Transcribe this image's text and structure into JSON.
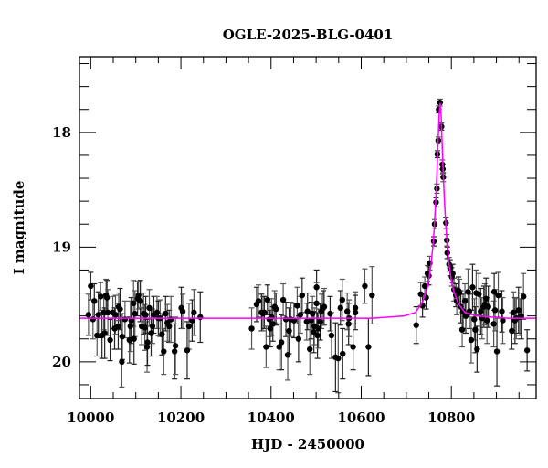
{
  "chart_data": {
    "type": "scatter",
    "title": "OGLE-2025-BLG-0401",
    "xlabel": "HJD - 2450000",
    "ylabel": "I magnitude",
    "xlim": [
      9975,
      10988
    ],
    "ylim": [
      20.32,
      17.34
    ],
    "y_inverted": true,
    "grid": false,
    "x_ticks": [
      10000,
      10200,
      10400,
      10600,
      10800
    ],
    "x_tick_labels": [
      "10000",
      "10200",
      "10400",
      "10600",
      "10800"
    ],
    "x_minor_step": 50,
    "y_ticks": [
      18,
      19,
      20
    ],
    "y_tick_labels": [
      "18",
      "19",
      "20"
    ],
    "y_minor_step": 0.2,
    "colors": {
      "points": "#000000",
      "error_bars": "#555555",
      "model": "#ff00ff",
      "axes": "#000000"
    },
    "points_columns": [
      "hjd",
      "mag",
      "err"
    ],
    "points": [
      [
        9995,
        19.59,
        0.18
      ],
      [
        10000,
        19.34,
        0.12
      ],
      [
        10005,
        19.63,
        0.17
      ],
      [
        10008,
        19.47,
        0.15
      ],
      [
        10014,
        19.77,
        0.18
      ],
      [
        10017,
        19.59,
        0.2
      ],
      [
        10022,
        19.43,
        0.12
      ],
      [
        10025,
        19.77,
        0.2
      ],
      [
        10029,
        19.57,
        0.15
      ],
      [
        10031,
        19.75,
        0.22
      ],
      [
        10034,
        19.42,
        0.14
      ],
      [
        10036,
        19.44,
        0.15
      ],
      [
        10038,
        19.57,
        0.2
      ],
      [
        10043,
        19.81,
        0.18
      ],
      [
        10049,
        19.57,
        0.14
      ],
      [
        10053,
        19.71,
        0.18
      ],
      [
        10055,
        19.59,
        0.17
      ],
      [
        10061,
        19.69,
        0.2
      ],
      [
        10062,
        19.52,
        0.12
      ],
      [
        10065,
        19.54,
        0.18
      ],
      [
        10069,
        20.0,
        0.22
      ],
      [
        10070,
        19.78,
        0.2
      ],
      [
        10076,
        19.63,
        0.16
      ],
      [
        10086,
        19.81,
        0.2
      ],
      [
        10088,
        19.69,
        0.22
      ],
      [
        10090,
        19.64,
        0.2
      ],
      [
        10095,
        19.49,
        0.2
      ],
      [
        10096,
        19.8,
        0.22
      ],
      [
        10098,
        19.58,
        0.2
      ],
      [
        10104,
        19.45,
        0.15
      ],
      [
        10106,
        19.42,
        0.12
      ],
      [
        10110,
        19.47,
        0.18
      ],
      [
        10113,
        19.69,
        0.16
      ],
      [
        10117,
        19.58,
        0.18
      ],
      [
        10120,
        19.7,
        0.2
      ],
      [
        10122,
        19.59,
        0.16
      ],
      [
        10125,
        19.87,
        0.22
      ],
      [
        10126,
        19.83,
        0.2
      ],
      [
        10130,
        19.53,
        0.16
      ],
      [
        10134,
        19.75,
        0.2
      ],
      [
        10137,
        19.69,
        0.15
      ],
      [
        10140,
        19.59,
        0.16
      ],
      [
        10147,
        19.57,
        0.14
      ],
      [
        10150,
        19.62,
        0.15
      ],
      [
        10154,
        19.62,
        0.16
      ],
      [
        10158,
        19.76,
        0.18
      ],
      [
        10162,
        19.91,
        0.2
      ],
      [
        10166,
        19.58,
        0.15
      ],
      [
        10170,
        19.66,
        0.16
      ],
      [
        10174,
        19.69,
        0.14
      ],
      [
        10178,
        19.63,
        0.2
      ],
      [
        10186,
        19.91,
        0.24
      ],
      [
        10188,
        19.86,
        0.25
      ],
      [
        10201,
        19.53,
        0.18
      ],
      [
        10204,
        19.56,
        0.15
      ],
      [
        10214,
        19.9,
        0.25
      ],
      [
        10218,
        19.69,
        0.2
      ],
      [
        10225,
        19.64,
        0.18
      ],
      [
        10229,
        19.57,
        0.2
      ],
      [
        10243,
        19.61,
        0.22
      ],
      [
        10357,
        19.71,
        0.18
      ],
      [
        10368,
        19.5,
        0.15
      ],
      [
        10372,
        19.47,
        0.14
      ],
      [
        10379,
        19.57,
        0.16
      ],
      [
        10382,
        19.58,
        0.15
      ],
      [
        10385,
        19.57,
        0.14
      ],
      [
        10389,
        19.87,
        0.18
      ],
      [
        10392,
        19.46,
        0.13
      ],
      [
        10396,
        19.63,
        0.15
      ],
      [
        10398,
        19.71,
        0.16
      ],
      [
        10401,
        19.61,
        0.16
      ],
      [
        10404,
        19.67,
        0.15
      ],
      [
        10408,
        19.52,
        0.14
      ],
      [
        10411,
        19.54,
        0.14
      ],
      [
        10418,
        19.87,
        0.2
      ],
      [
        10423,
        19.83,
        0.24
      ],
      [
        10427,
        19.46,
        0.14
      ],
      [
        10433,
        19.63,
        0.15
      ],
      [
        10437,
        19.94,
        0.22
      ],
      [
        10440,
        19.73,
        0.2
      ],
      [
        10444,
        19.63,
        0.15
      ],
      [
        10451,
        19.64,
        0.15
      ],
      [
        10458,
        19.51,
        0.16
      ],
      [
        10461,
        19.8,
        0.2
      ],
      [
        10465,
        19.59,
        0.16
      ],
      [
        10469,
        19.42,
        0.15
      ],
      [
        10479,
        19.65,
        0.16
      ],
      [
        10481,
        19.56,
        0.16
      ],
      [
        10486,
        19.89,
        0.22
      ],
      [
        10489,
        19.64,
        0.16
      ],
      [
        10492,
        19.58,
        0.15
      ],
      [
        10495,
        19.74,
        0.18
      ],
      [
        10496,
        19.69,
        0.16
      ],
      [
        10501,
        19.35,
        0.15
      ],
      [
        10501,
        19.49,
        0.18
      ],
      [
        10503,
        19.77,
        0.2
      ],
      [
        10505,
        19.71,
        0.17
      ],
      [
        10509,
        19.65,
        0.16
      ],
      [
        10512,
        19.56,
        0.15
      ],
      [
        10516,
        19.53,
        0.15
      ],
      [
        10518,
        19.52,
        0.16
      ],
      [
        10531,
        19.58,
        0.15
      ],
      [
        10534,
        19.77,
        0.2
      ],
      [
        10543,
        19.96,
        0.3
      ],
      [
        10549,
        19.97,
        0.3
      ],
      [
        10554,
        19.53,
        0.15
      ],
      [
        10558,
        19.46,
        0.18
      ],
      [
        10559,
        19.93,
        0.22
      ],
      [
        10569,
        19.56,
        0.16
      ],
      [
        10572,
        19.67,
        0.18
      ],
      [
        10573,
        19.62,
        0.16
      ],
      [
        10582,
        19.87,
        0.2
      ],
      [
        10587,
        19.53,
        0.14
      ],
      [
        10587,
        19.57,
        0.15
      ],
      [
        10608,
        19.34,
        0.15
      ],
      [
        10616,
        19.87,
        0.25
      ],
      [
        10624,
        19.42,
        0.25
      ],
      [
        10722,
        19.68,
        0.16
      ],
      [
        10732,
        19.41,
        0.1
      ],
      [
        10736,
        19.51,
        0.1
      ],
      [
        10741,
        19.34,
        0.08
      ],
      [
        10744,
        19.44,
        0.1
      ],
      [
        10747,
        19.23,
        0.07
      ],
      [
        10750,
        19.25,
        0.08
      ],
      [
        10752,
        19.14,
        0.06
      ],
      [
        10761,
        18.95,
        0.04
      ],
      [
        10763,
        18.8,
        0.04
      ],
      [
        10766,
        18.61,
        0.04
      ],
      [
        10768,
        18.49,
        0.04
      ],
      [
        10769,
        18.19,
        0.03
      ],
      [
        10771,
        18.07,
        0.03
      ],
      [
        10772,
        17.8,
        0.03
      ],
      [
        10775,
        17.74,
        0.03
      ],
      [
        10778,
        17.95,
        0.03
      ],
      [
        10780,
        18.28,
        0.04
      ],
      [
        10781,
        18.32,
        0.04
      ],
      [
        10782,
        18.39,
        0.04
      ],
      [
        10788,
        18.79,
        0.05
      ],
      [
        10790,
        18.94,
        0.05
      ],
      [
        10791,
        19.05,
        0.05
      ],
      [
        10795,
        19.15,
        0.06
      ],
      [
        10797,
        19.18,
        0.07
      ],
      [
        10801,
        19.26,
        0.08
      ],
      [
        10803,
        19.23,
        0.08
      ],
      [
        10806,
        19.37,
        0.1
      ],
      [
        10810,
        19.42,
        0.1
      ],
      [
        10812,
        19.47,
        0.12
      ],
      [
        10816,
        19.38,
        0.12
      ],
      [
        10818,
        19.4,
        0.12
      ],
      [
        10821,
        19.52,
        0.14
      ],
      [
        10824,
        19.72,
        0.15
      ],
      [
        10826,
        19.56,
        0.15
      ],
      [
        10830,
        19.47,
        0.15
      ],
      [
        10832,
        19.6,
        0.15
      ],
      [
        10837,
        19.39,
        0.2
      ],
      [
        10840,
        19.56,
        0.15
      ],
      [
        10844,
        19.81,
        0.2
      ],
      [
        10847,
        19.35,
        0.2
      ],
      [
        10851,
        19.63,
        0.18
      ],
      [
        10853,
        19.72,
        0.2
      ],
      [
        10855,
        19.4,
        0.2
      ],
      [
        10857,
        19.89,
        0.2
      ],
      [
        10861,
        19.41,
        0.18
      ],
      [
        10865,
        19.56,
        0.2
      ],
      [
        10868,
        19.62,
        0.18
      ],
      [
        10872,
        19.52,
        0.18
      ],
      [
        10874,
        19.5,
        0.18
      ],
      [
        10877,
        19.45,
        0.18
      ],
      [
        10879,
        19.64,
        0.2
      ],
      [
        10882,
        19.52,
        0.18
      ],
      [
        10894,
        19.67,
        0.2
      ],
      [
        10895,
        19.39,
        0.16
      ],
      [
        10897,
        19.55,
        0.18
      ],
      [
        10901,
        19.91,
        0.3
      ],
      [
        10904,
        19.42,
        0.2
      ],
      [
        10912,
        19.56,
        0.18
      ],
      [
        10914,
        19.64,
        0.2
      ],
      [
        10934,
        19.73,
        0.16
      ],
      [
        10938,
        19.57,
        0.18
      ],
      [
        10941,
        19.64,
        0.2
      ],
      [
        10944,
        19.62,
        0.18
      ],
      [
        10949,
        19.55,
        0.2
      ],
      [
        10952,
        19.61,
        0.16
      ],
      [
        10955,
        19.6,
        0.2
      ],
      [
        10960,
        19.43,
        0.2
      ],
      [
        10968,
        19.9,
        0.18
      ]
    ],
    "model": {
      "x": [
        9975,
        10500,
        10625,
        10695,
        10720,
        10735,
        10745,
        10750,
        10755,
        10759,
        10762,
        10765,
        10767,
        10769,
        10771,
        10773,
        10775,
        10777,
        10779,
        10781,
        10783,
        10785,
        10788,
        10791,
        10795,
        10800,
        10805,
        10815,
        10830,
        10855,
        10925,
        10988
      ],
      "mag": [
        19.62,
        19.62,
        19.62,
        19.6,
        19.57,
        19.49,
        19.38,
        19.29,
        19.15,
        18.99,
        18.83,
        18.62,
        18.45,
        18.25,
        18.03,
        17.835,
        17.745,
        17.835,
        18.03,
        18.25,
        18.45,
        18.62,
        18.83,
        18.99,
        19.15,
        19.29,
        19.38,
        19.49,
        19.57,
        19.6,
        19.62,
        19.62
      ]
    }
  }
}
